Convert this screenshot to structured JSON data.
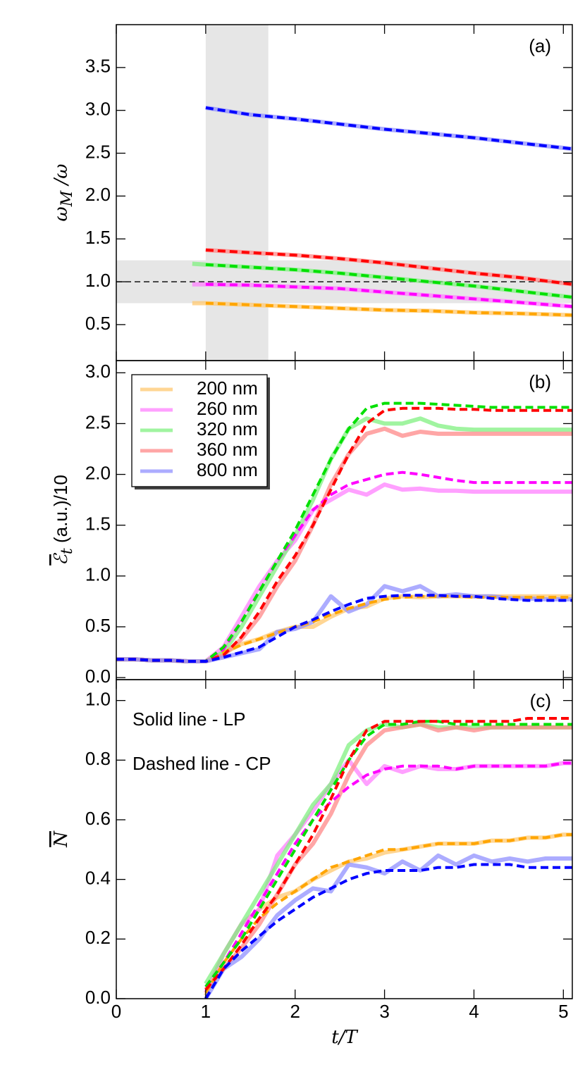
{
  "chart_data": [
    {
      "type": "line",
      "panel_label": "(a)",
      "ylabel": {
        "symbol": "ω",
        "sub": "M",
        "rest": " /ω"
      },
      "x": [
        0.85,
        1,
        1.5,
        2,
        2.5,
        3,
        3.5,
        4,
        4.5,
        5.1
      ],
      "xlim": [
        0,
        5.1
      ],
      "xticks": [
        0,
        1,
        2,
        3,
        4,
        5
      ],
      "ylim": [
        0.08,
        4.0
      ],
      "yticks": [
        0.5,
        {
          "value": 1,
          "label": "1.0"
        },
        1.5,
        {
          "value": 2,
          "label": "2.0"
        },
        2.5,
        {
          "value": 3,
          "label": "3.0"
        },
        3.5
      ],
      "shaded_x": [
        1,
        1.7
      ],
      "shaded_y": [
        0.75,
        1.25
      ],
      "hline": 1,
      "series": [
        {
          "color": "#ffc870",
          "style": "solid",
          "values": [
            0.75,
            0.75,
            0.73,
            0.71,
            0.69,
            0.67,
            0.66,
            0.64,
            0.63,
            0.61
          ]
        },
        {
          "color": "#ff80ff",
          "style": "solid",
          "values": [
            0.97,
            0.97,
            0.96,
            0.94,
            0.92,
            0.88,
            0.84,
            0.8,
            0.76,
            0.71
          ]
        },
        {
          "color": "#80f080",
          "style": "solid",
          "values": [
            1.21,
            1.2,
            1.17,
            1.14,
            1.1,
            1.05,
            1.0,
            0.95,
            0.89,
            0.82
          ]
        },
        {
          "color": "#ff8888",
          "style": "solid",
          "values": [
            null,
            1.37,
            1.34,
            1.31,
            1.27,
            1.22,
            1.16,
            1.1,
            1.05,
            0.97
          ]
        },
        {
          "color": "#9090ff",
          "style": "solid",
          "values": [
            null,
            3.03,
            2.95,
            2.9,
            2.84,
            2.78,
            2.73,
            2.68,
            2.62,
            2.55
          ]
        },
        {
          "color": "#ffa500",
          "style": "dashed",
          "values": [
            null,
            0.75,
            0.73,
            0.71,
            0.69,
            0.67,
            0.66,
            0.64,
            0.63,
            0.61
          ]
        },
        {
          "color": "#ff00ff",
          "style": "dashed",
          "values": [
            null,
            0.97,
            0.96,
            0.94,
            0.92,
            0.88,
            0.84,
            0.8,
            0.76,
            0.71
          ]
        },
        {
          "color": "#00e000",
          "style": "dashed",
          "values": [
            null,
            1.2,
            1.17,
            1.14,
            1.1,
            1.05,
            1.0,
            0.95,
            0.89,
            0.82
          ]
        },
        {
          "color": "#ff0000",
          "style": "dashed",
          "values": [
            null,
            1.37,
            1.34,
            1.31,
            1.27,
            1.22,
            1.16,
            1.1,
            1.05,
            0.97
          ]
        },
        {
          "color": "#0000ff",
          "style": "dashed",
          "values": [
            null,
            3.03,
            2.95,
            2.9,
            2.84,
            2.78,
            2.73,
            2.68,
            2.62,
            2.55
          ]
        }
      ]
    },
    {
      "type": "line",
      "panel_label": "(b)",
      "ylabel": {
        "symbol": "ℰ",
        "sub": "t",
        "rest": " (a.u.)/10",
        "overline": true
      },
      "x": [
        0,
        0.2,
        0.4,
        0.6,
        0.8,
        1.0,
        1.2,
        1.4,
        1.6,
        1.8,
        2.0,
        2.2,
        2.4,
        2.6,
        2.8,
        3.0,
        3.2,
        3.4,
        3.6,
        3.8,
        4.0,
        4.2,
        4.4,
        4.6,
        4.8,
        5.0,
        5.1
      ],
      "xlim": [
        0,
        5.1
      ],
      "xticks": [
        0,
        1,
        2,
        3,
        4,
        5
      ],
      "ylim": [
        -0.02,
        3.12
      ],
      "yticks": [
        {
          "value": 0,
          "label": "0.0"
        },
        0.5,
        {
          "value": 1,
          "label": "1.0"
        },
        1.5,
        {
          "value": 2,
          "label": "2.0"
        },
        2.5,
        {
          "value": 3,
          "label": "3.0"
        }
      ],
      "legend": "upper left",
      "series": [
        {
          "name": "200 nm",
          "color": "#ffc870",
          "style": "solid",
          "values": [
            0.18,
            0.18,
            0.17,
            0.17,
            0.16,
            0.16,
            0.24,
            0.33,
            0.38,
            0.45,
            0.5,
            0.5,
            0.6,
            0.68,
            0.7,
            0.78,
            0.8,
            0.79,
            0.8,
            0.8,
            0.8,
            0.8,
            0.8,
            0.8,
            0.8,
            0.8,
            0.8
          ]
        },
        {
          "name": "260 nm",
          "color": "#ff80ff",
          "style": "solid",
          "values": [
            0.18,
            0.18,
            0.17,
            0.17,
            0.16,
            0.16,
            0.3,
            0.6,
            0.9,
            1.15,
            1.35,
            1.65,
            1.75,
            1.85,
            1.8,
            1.9,
            1.85,
            1.86,
            1.84,
            1.84,
            1.83,
            1.83,
            1.83,
            1.83,
            1.83,
            1.83,
            1.83
          ]
        },
        {
          "name": "320 nm",
          "color": "#80f080",
          "style": "solid",
          "values": [
            0.18,
            0.18,
            0.17,
            0.17,
            0.16,
            0.16,
            0.25,
            0.5,
            0.8,
            1.1,
            1.4,
            1.75,
            2.15,
            2.45,
            2.55,
            2.5,
            2.5,
            2.55,
            2.48,
            2.45,
            2.44,
            2.44,
            2.44,
            2.44,
            2.44,
            2.44,
            2.44
          ]
        },
        {
          "name": "360 nm",
          "color": "#ff8888",
          "style": "solid",
          "values": [
            0.18,
            0.18,
            0.17,
            0.17,
            0.16,
            0.16,
            0.22,
            0.38,
            0.6,
            0.9,
            1.15,
            1.5,
            1.9,
            2.2,
            2.4,
            2.45,
            2.38,
            2.42,
            2.4,
            2.4,
            2.4,
            2.4,
            2.4,
            2.4,
            2.4,
            2.4,
            2.4
          ]
        },
        {
          "name": "800 nm",
          "color": "#9090ff",
          "style": "solid",
          "values": [
            0.18,
            0.18,
            0.17,
            0.17,
            0.16,
            0.16,
            0.2,
            0.24,
            0.28,
            0.45,
            0.48,
            0.55,
            0.8,
            0.65,
            0.72,
            0.9,
            0.85,
            0.9,
            0.8,
            0.82,
            0.8,
            0.8,
            0.78,
            0.78,
            0.77,
            0.77,
            0.77
          ]
        },
        {
          "color": "#ffa500",
          "style": "dashed",
          "values": [
            0.18,
            0.18,
            0.17,
            0.17,
            0.16,
            0.16,
            0.25,
            0.32,
            0.38,
            0.44,
            0.5,
            0.55,
            0.62,
            0.68,
            0.73,
            0.77,
            0.79,
            0.8,
            0.8,
            0.8,
            0.79,
            0.79,
            0.79,
            0.79,
            0.79,
            0.79,
            0.79
          ]
        },
        {
          "color": "#ff00ff",
          "style": "dashed",
          "values": [
            0.18,
            0.18,
            0.17,
            0.17,
            0.16,
            0.16,
            0.28,
            0.55,
            0.85,
            1.15,
            1.4,
            1.65,
            1.8,
            1.9,
            1.95,
            2.0,
            2.02,
            2.0,
            1.97,
            1.94,
            1.92,
            1.92,
            1.92,
            1.92,
            1.92,
            1.92,
            1.92
          ]
        },
        {
          "color": "#00e000",
          "style": "dashed",
          "values": [
            0.18,
            0.18,
            0.17,
            0.17,
            0.16,
            0.16,
            0.3,
            0.55,
            0.85,
            1.15,
            1.45,
            1.8,
            2.15,
            2.45,
            2.65,
            2.7,
            2.7,
            2.7,
            2.69,
            2.68,
            2.67,
            2.66,
            2.66,
            2.66,
            2.66,
            2.66,
            2.66
          ]
        },
        {
          "color": "#ff0000",
          "style": "dashed",
          "values": [
            0.18,
            0.18,
            0.17,
            0.17,
            0.16,
            0.16,
            0.22,
            0.4,
            0.65,
            0.95,
            1.2,
            1.5,
            1.85,
            2.2,
            2.5,
            2.63,
            2.65,
            2.65,
            2.65,
            2.64,
            2.64,
            2.63,
            2.63,
            2.63,
            2.63,
            2.63,
            2.63
          ]
        },
        {
          "color": "#0000ff",
          "style": "dashed",
          "values": [
            0.18,
            0.18,
            0.17,
            0.17,
            0.16,
            0.16,
            0.2,
            0.25,
            0.3,
            0.4,
            0.5,
            0.57,
            0.65,
            0.72,
            0.78,
            0.8,
            0.81,
            0.81,
            0.81,
            0.8,
            0.8,
            0.78,
            0.77,
            0.76,
            0.76,
            0.76,
            0.76
          ]
        }
      ]
    },
    {
      "type": "line",
      "panel_label": "(c)",
      "ylabel": {
        "symbol": "N",
        "overline": true
      },
      "xlabel": "t/T",
      "annotations": [
        "Solid line - LP",
        "Dashed line - CP"
      ],
      "x": [
        0,
        0.2,
        0.4,
        0.6,
        0.8,
        1.0,
        1.2,
        1.4,
        1.6,
        1.8,
        2.0,
        2.2,
        2.4,
        2.6,
        2.8,
        3.0,
        3.2,
        3.4,
        3.6,
        3.8,
        4.0,
        4.2,
        4.4,
        4.6,
        4.8,
        5.0,
        5.1
      ],
      "xlim": [
        0,
        5.1
      ],
      "xticks": [
        0,
        1,
        2,
        3,
        4,
        5
      ],
      "ylim": [
        0,
        1.07
      ],
      "yticks": [
        {
          "value": 0,
          "label": "0.0"
        },
        0.2,
        0.4,
        0.6,
        0.8,
        {
          "value": 1,
          "label": "1.0"
        }
      ],
      "series": [
        {
          "color": "#ffc870",
          "style": "solid",
          "values": [
            null,
            null,
            null,
            null,
            null,
            0.01,
            0.15,
            0.25,
            0.3,
            0.34,
            0.36,
            0.4,
            0.43,
            0.46,
            0.47,
            0.49,
            0.5,
            0.51,
            0.52,
            0.52,
            0.52,
            0.53,
            0.53,
            0.54,
            0.54,
            0.55,
            0.55
          ]
        },
        {
          "color": "#ff80ff",
          "style": "solid",
          "values": [
            null,
            null,
            null,
            null,
            null,
            0.02,
            0.15,
            0.25,
            0.3,
            0.48,
            0.55,
            0.63,
            0.72,
            0.8,
            0.72,
            0.78,
            0.76,
            0.78,
            0.77,
            0.77,
            0.78,
            0.78,
            0.78,
            0.78,
            0.78,
            0.79,
            0.79
          ]
        },
        {
          "color": "#80f080",
          "style": "solid",
          "values": [
            null,
            null,
            null,
            null,
            null,
            0.05,
            0.15,
            0.25,
            0.35,
            0.45,
            0.55,
            0.65,
            0.72,
            0.85,
            0.9,
            0.92,
            0.91,
            0.92,
            0.91,
            0.91,
            0.91,
            0.91,
            0.91,
            0.91,
            0.91,
            0.91,
            0.91
          ]
        },
        {
          "color": "#ff8888",
          "style": "solid",
          "values": [
            null,
            null,
            null,
            null,
            null,
            0.03,
            0.1,
            0.17,
            0.25,
            0.35,
            0.45,
            0.52,
            0.62,
            0.75,
            0.85,
            0.9,
            0.91,
            0.92,
            0.9,
            0.91,
            0.9,
            0.91,
            0.91,
            0.91,
            0.91,
            0.91,
            0.91
          ]
        },
        {
          "color": "#9090ff",
          "style": "solid",
          "values": [
            null,
            null,
            null,
            null,
            null,
            0.0,
            0.1,
            0.14,
            0.2,
            0.28,
            0.33,
            0.37,
            0.36,
            0.45,
            0.44,
            0.42,
            0.46,
            0.43,
            0.48,
            0.45,
            0.48,
            0.46,
            0.47,
            0.46,
            0.47,
            0.47,
            0.47
          ]
        },
        {
          "color": "#ffa500",
          "style": "dashed",
          "values": [
            null,
            null,
            null,
            null,
            null,
            0.02,
            0.12,
            0.2,
            0.27,
            0.32,
            0.36,
            0.4,
            0.44,
            0.46,
            0.48,
            0.5,
            0.5,
            0.51,
            0.52,
            0.52,
            0.52,
            0.53,
            0.53,
            0.54,
            0.54,
            0.55,
            0.55
          ]
        },
        {
          "color": "#ff00ff",
          "style": "dashed",
          "values": [
            null,
            null,
            null,
            null,
            null,
            0.04,
            0.12,
            0.22,
            0.32,
            0.42,
            0.52,
            0.6,
            0.66,
            0.71,
            0.75,
            0.77,
            0.78,
            0.78,
            0.78,
            0.77,
            0.78,
            0.78,
            0.78,
            0.78,
            0.78,
            0.79,
            0.79
          ]
        },
        {
          "color": "#00e000",
          "style": "dashed",
          "values": [
            null,
            null,
            null,
            null,
            null,
            0.04,
            0.12,
            0.2,
            0.3,
            0.4,
            0.5,
            0.6,
            0.7,
            0.8,
            0.88,
            0.92,
            0.92,
            0.93,
            0.93,
            0.92,
            0.92,
            0.92,
            0.92,
            0.92,
            0.92,
            0.92,
            0.92
          ]
        },
        {
          "color": "#ff0000",
          "style": "dashed",
          "values": [
            null,
            null,
            null,
            null,
            null,
            0.03,
            0.1,
            0.18,
            0.27,
            0.35,
            0.45,
            0.55,
            0.67,
            0.8,
            0.9,
            0.93,
            0.93,
            0.93,
            0.93,
            0.93,
            0.93,
            0.93,
            0.93,
            0.94,
            0.94,
            0.94,
            0.94
          ]
        },
        {
          "color": "#0000ff",
          "style": "dashed",
          "values": [
            null,
            null,
            null,
            null,
            null,
            0.0,
            0.1,
            0.16,
            0.21,
            0.26,
            0.3,
            0.34,
            0.37,
            0.4,
            0.42,
            0.43,
            0.43,
            0.43,
            0.44,
            0.44,
            0.45,
            0.45,
            0.45,
            0.44,
            0.44,
            0.44,
            0.44
          ]
        }
      ]
    }
  ]
}
